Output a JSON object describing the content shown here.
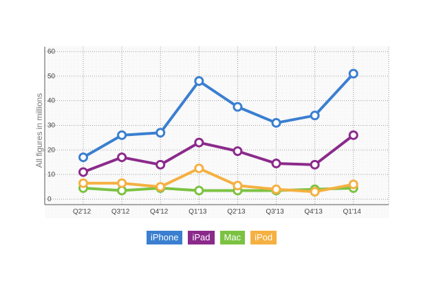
{
  "chart_data": {
    "type": "line",
    "categories": [
      "Q2'12",
      "Q3'12",
      "Q4'12",
      "Q1'13",
      "Q2'13",
      "Q3'13",
      "Q4'13",
      "Q1'14"
    ],
    "ylabel": "All figures in millions",
    "ylim": [
      0,
      60
    ],
    "yticks": [
      0,
      10,
      20,
      30,
      40,
      50,
      60
    ],
    "grid": true,
    "legend_position": "bottom",
    "series": [
      {
        "name": "iPhone",
        "color": "#3a7fd0",
        "values": [
          17,
          26,
          27,
          48,
          37.5,
          31,
          34,
          51
        ]
      },
      {
        "name": "iPad",
        "color": "#8b2a8b",
        "values": [
          11,
          17,
          14,
          23,
          19.5,
          14.5,
          14,
          26
        ]
      },
      {
        "name": "Mac",
        "color": "#7cc242",
        "values": [
          4.5,
          3.5,
          4.5,
          3.5,
          3.5,
          3.5,
          4,
          4.5
        ]
      },
      {
        "name": "iPod",
        "color": "#f5b041",
        "values": [
          6.5,
          6.5,
          5,
          12.5,
          5.5,
          4,
          3,
          6
        ]
      }
    ]
  }
}
